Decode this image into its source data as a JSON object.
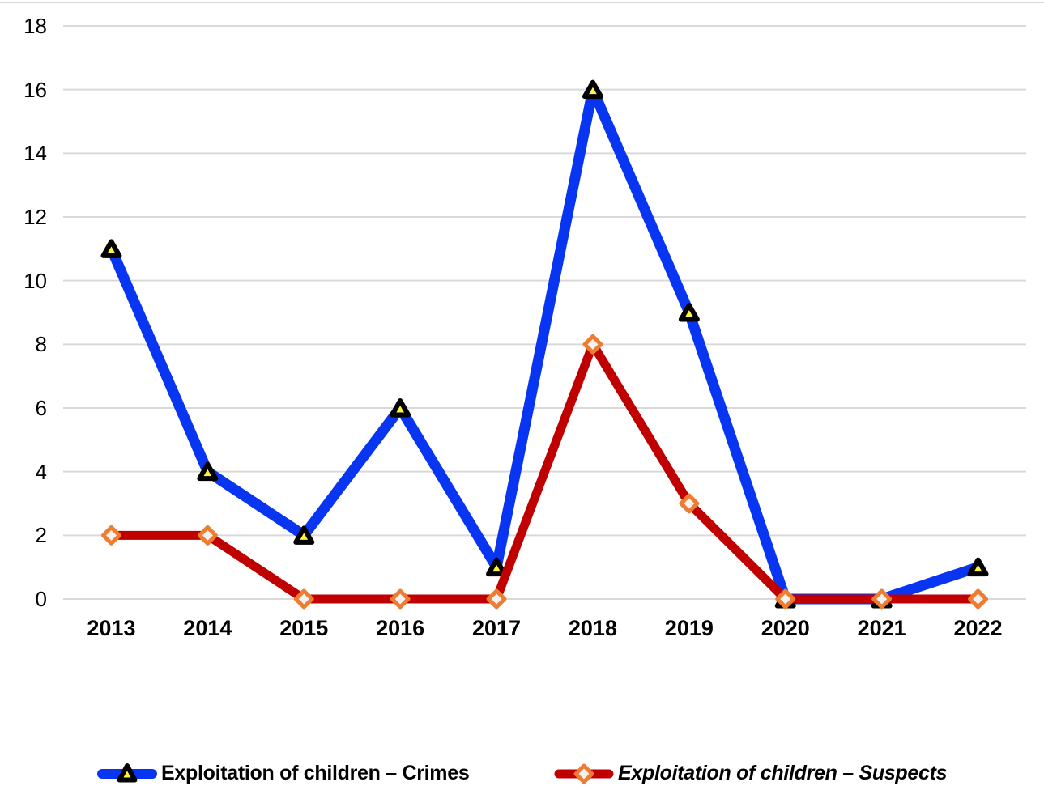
{
  "chart_data": {
    "type": "line",
    "title": "",
    "xlabel": "",
    "ylabel": "",
    "categories": [
      "2013",
      "2014",
      "2015",
      "2016",
      "2017",
      "2018",
      "2019",
      "2020",
      "2021",
      "2022"
    ],
    "series": [
      {
        "name": "Exploitation of children – Crimes",
        "values": [
          11,
          4,
          2,
          6,
          1,
          16,
          9,
          0,
          0,
          1
        ],
        "color": "#0835F2",
        "marker": "triangle",
        "marker_fill": "#FDF53F",
        "marker_stroke": "#000000"
      },
      {
        "name": "Exploitation of children – Suspects",
        "values": [
          2,
          2,
          0,
          0,
          0,
          8,
          3,
          0,
          0,
          0
        ],
        "color": "#C00000",
        "marker": "diamond",
        "marker_fill": "#F2F2F2",
        "marker_stroke": "#ED7D31"
      }
    ],
    "ylim": [
      0,
      18
    ],
    "yticks": [
      0,
      2,
      4,
      6,
      8,
      10,
      12,
      14,
      16,
      18
    ],
    "grid": true,
    "gridline_color": "#D9D9D9",
    "legend_position": "bottom"
  }
}
